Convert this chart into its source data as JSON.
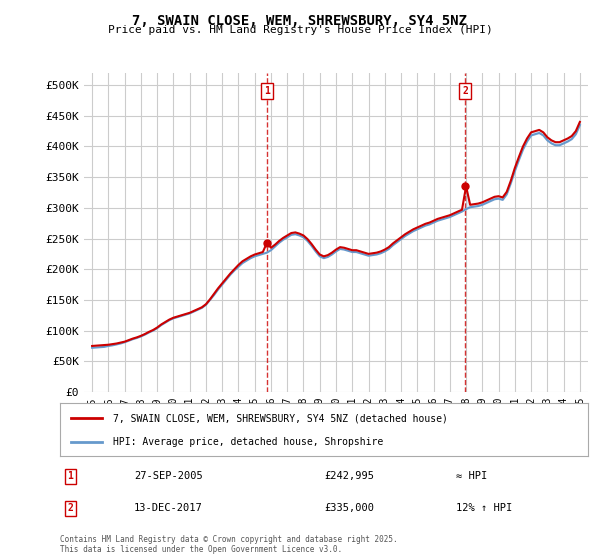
{
  "title": "7, SWAIN CLOSE, WEM, SHREWSBURY, SY4 5NZ",
  "subtitle": "Price paid vs. HM Land Registry's House Price Index (HPI)",
  "background_color": "#ffffff",
  "plot_bg_color": "#ffffff",
  "grid_color": "#cccccc",
  "ylim": [
    0,
    520000
  ],
  "yticks": [
    0,
    50000,
    100000,
    150000,
    200000,
    250000,
    300000,
    350000,
    400000,
    450000,
    500000
  ],
  "xlim_start": 1994.5,
  "xlim_end": 2025.5,
  "xticks": [
    1995,
    1996,
    1997,
    1998,
    1999,
    2000,
    2001,
    2002,
    2003,
    2004,
    2005,
    2006,
    2007,
    2008,
    2009,
    2010,
    2011,
    2012,
    2013,
    2014,
    2015,
    2016,
    2017,
    2018,
    2019,
    2020,
    2021,
    2022,
    2023,
    2024,
    2025
  ],
  "hpi_color": "#6699cc",
  "price_color": "#cc0000",
  "marker1_date": 2005.74,
  "marker2_date": 2017.95,
  "legend_label_price": "7, SWAIN CLOSE, WEM, SHREWSBURY, SY4 5NZ (detached house)",
  "legend_label_hpi": "HPI: Average price, detached house, Shropshire",
  "annotation1_num": "1",
  "annotation1_date": "27-SEP-2005",
  "annotation1_price": "£242,995",
  "annotation1_hpi": "≈ HPI",
  "annotation2_num": "2",
  "annotation2_date": "13-DEC-2017",
  "annotation2_price": "£335,000",
  "annotation2_hpi": "12% ↑ HPI",
  "footer": "Contains HM Land Registry data © Crown copyright and database right 2025.\nThis data is licensed under the Open Government Licence v3.0.",
  "hpi_data_x": [
    1995.0,
    1995.25,
    1995.5,
    1995.75,
    1996.0,
    1996.25,
    1996.5,
    1996.75,
    1997.0,
    1997.25,
    1997.5,
    1997.75,
    1998.0,
    1998.25,
    1998.5,
    1998.75,
    1999.0,
    1999.25,
    1999.5,
    1999.75,
    2000.0,
    2000.25,
    2000.5,
    2000.75,
    2001.0,
    2001.25,
    2001.5,
    2001.75,
    2002.0,
    2002.25,
    2002.5,
    2002.75,
    2003.0,
    2003.25,
    2003.5,
    2003.75,
    2004.0,
    2004.25,
    2004.5,
    2004.75,
    2005.0,
    2005.25,
    2005.5,
    2005.75,
    2006.0,
    2006.25,
    2006.5,
    2006.75,
    2007.0,
    2007.25,
    2007.5,
    2007.75,
    2008.0,
    2008.25,
    2008.5,
    2008.75,
    2009.0,
    2009.25,
    2009.5,
    2009.75,
    2010.0,
    2010.25,
    2010.5,
    2010.75,
    2011.0,
    2011.25,
    2011.5,
    2011.75,
    2012.0,
    2012.25,
    2012.5,
    2012.75,
    2013.0,
    2013.25,
    2013.5,
    2013.75,
    2014.0,
    2014.25,
    2014.5,
    2014.75,
    2015.0,
    2015.25,
    2015.5,
    2015.75,
    2016.0,
    2016.25,
    2016.5,
    2016.75,
    2017.0,
    2017.25,
    2017.5,
    2017.75,
    2018.0,
    2018.25,
    2018.5,
    2018.75,
    2019.0,
    2019.25,
    2019.5,
    2019.75,
    2020.0,
    2020.25,
    2020.5,
    2020.75,
    2021.0,
    2021.25,
    2021.5,
    2021.75,
    2022.0,
    2022.25,
    2022.5,
    2022.75,
    2023.0,
    2023.25,
    2023.5,
    2023.75,
    2024.0,
    2024.25,
    2024.5,
    2024.75,
    2025.0
  ],
  "hpi_data_y": [
    72000,
    72500,
    73000,
    73500,
    75000,
    76000,
    77500,
    79000,
    81000,
    83500,
    86000,
    88000,
    90500,
    93500,
    97000,
    100000,
    104000,
    109000,
    113000,
    117000,
    120000,
    122000,
    124000,
    126000,
    128000,
    131000,
    134000,
    137000,
    142000,
    150000,
    158000,
    167000,
    175000,
    183000,
    191000,
    198000,
    204000,
    210000,
    214000,
    218000,
    221000,
    223000,
    225000,
    227000,
    231000,
    237000,
    243000,
    248000,
    252000,
    256000,
    257000,
    255000,
    252000,
    246000,
    238000,
    229000,
    221000,
    218000,
    220000,
    224000,
    229000,
    233000,
    232000,
    230000,
    228000,
    228000,
    226000,
    224000,
    222000,
    223000,
    224000,
    226000,
    229000,
    233000,
    239000,
    244000,
    249000,
    254000,
    258000,
    262000,
    265000,
    268000,
    271000,
    273000,
    276000,
    279000,
    281000,
    283000,
    285000,
    288000,
    291000,
    294000,
    298000,
    301000,
    302000,
    303000,
    305000,
    308000,
    311000,
    314000,
    315000,
    313000,
    322000,
    340000,
    360000,
    378000,
    395000,
    408000,
    418000,
    420000,
    422000,
    418000,
    410000,
    405000,
    402000,
    402000,
    405000,
    408000,
    412000,
    420000,
    435000
  ],
  "price_data_x": [
    1995.0,
    1995.25,
    1995.5,
    1995.75,
    1996.0,
    1996.25,
    1996.5,
    1996.75,
    1997.0,
    1997.25,
    1997.5,
    1997.75,
    1998.0,
    1998.25,
    1998.5,
    1998.75,
    1999.0,
    1999.25,
    1999.5,
    1999.75,
    2000.0,
    2000.25,
    2000.5,
    2000.75,
    2001.0,
    2001.25,
    2001.5,
    2001.75,
    2002.0,
    2002.25,
    2002.5,
    2002.75,
    2003.0,
    2003.25,
    2003.5,
    2003.75,
    2004.0,
    2004.25,
    2004.5,
    2004.75,
    2005.0,
    2005.25,
    2005.5,
    2005.75,
    2006.0,
    2006.25,
    2006.5,
    2006.75,
    2007.0,
    2007.25,
    2007.5,
    2007.75,
    2008.0,
    2008.25,
    2008.5,
    2008.75,
    2009.0,
    2009.25,
    2009.5,
    2009.75,
    2010.0,
    2010.25,
    2010.5,
    2010.75,
    2011.0,
    2011.25,
    2011.5,
    2011.75,
    2012.0,
    2012.25,
    2012.5,
    2012.75,
    2013.0,
    2013.25,
    2013.5,
    2013.75,
    2014.0,
    2014.25,
    2014.5,
    2014.75,
    2015.0,
    2015.25,
    2015.5,
    2015.75,
    2016.0,
    2016.25,
    2016.5,
    2016.75,
    2017.0,
    2017.25,
    2017.5,
    2017.75,
    2018.0,
    2018.25,
    2018.5,
    2018.75,
    2019.0,
    2019.25,
    2019.5,
    2019.75,
    2020.0,
    2020.25,
    2020.5,
    2020.75,
    2021.0,
    2021.25,
    2021.5,
    2021.75,
    2022.0,
    2022.25,
    2022.5,
    2022.75,
    2023.0,
    2023.25,
    2023.5,
    2023.75,
    2024.0,
    2024.25,
    2024.5,
    2024.75,
    2025.0
  ],
  "price_data_y": [
    75000,
    75500,
    76000,
    76500,
    77000,
    78000,
    79000,
    80500,
    82000,
    84500,
    87000,
    89000,
    91500,
    94500,
    98000,
    101000,
    105000,
    110000,
    114000,
    118000,
    121000,
    123000,
    125000,
    127000,
    129000,
    132000,
    135000,
    138000,
    143000,
    151000,
    160000,
    169000,
    177000,
    185000,
    193000,
    200000,
    207000,
    213000,
    217000,
    221000,
    224000,
    226000,
    228000,
    243000,
    235000,
    240000,
    246000,
    251000,
    255000,
    259000,
    260000,
    258000,
    255000,
    249000,
    241000,
    232000,
    224000,
    221000,
    223000,
    227000,
    232000,
    236000,
    235000,
    233000,
    231000,
    231000,
    229000,
    227000,
    225000,
    226000,
    227000,
    229000,
    232000,
    236000,
    242000,
    247000,
    252000,
    257000,
    261000,
    265000,
    268000,
    271000,
    274000,
    276000,
    279000,
    282000,
    284000,
    286000,
    288000,
    291000,
    294000,
    297000,
    335000,
    305000,
    306000,
    307000,
    309000,
    312000,
    315000,
    318000,
    319000,
    317000,
    326000,
    344000,
    365000,
    383000,
    400000,
    413000,
    423000,
    425000,
    427000,
    423000,
    415000,
    410000,
    407000,
    407000,
    410000,
    413000,
    417000,
    425000,
    440000
  ]
}
